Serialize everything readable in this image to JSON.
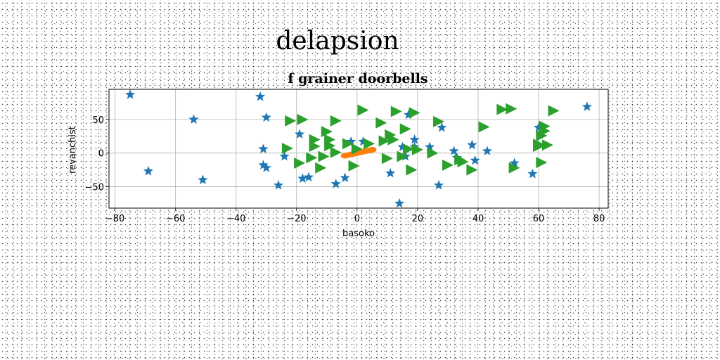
{
  "figure": {
    "suptitle": "delapsion"
  },
  "chart_data": {
    "type": "scatter",
    "title": "f grainer doorbells",
    "xlabel": "basoko",
    "ylabel": "revanchist",
    "xlim": [
      -82,
      83
    ],
    "ylim": [
      -82,
      95
    ],
    "xticks": [
      -80,
      -60,
      -40,
      -20,
      0,
      20,
      40,
      60,
      80
    ],
    "xtick_labels": [
      "−80",
      "−60",
      "−40",
      "−20",
      "0",
      "20",
      "40",
      "60",
      "80"
    ],
    "yticks": [
      -50,
      0,
      50
    ],
    "ytick_labels": [
      "−50",
      "0",
      "50"
    ],
    "grid": true,
    "legend": "none",
    "series": [
      {
        "marker": "star",
        "color": "#1f77b4",
        "points": [
          [
            -75,
            87
          ],
          [
            -69,
            -27
          ],
          [
            -54,
            50
          ],
          [
            -51,
            -40
          ],
          [
            -32,
            84
          ],
          [
            -31,
            -18
          ],
          [
            -31,
            6
          ],
          [
            -30,
            53
          ],
          [
            -30,
            -22
          ],
          [
            -26,
            -48
          ],
          [
            -24,
            -5
          ],
          [
            -19,
            28
          ],
          [
            -18,
            -38
          ],
          [
            -16,
            -36
          ],
          [
            -7,
            -46
          ],
          [
            -4,
            -37
          ],
          [
            -2,
            17
          ],
          [
            2,
            17
          ],
          [
            11,
            -30
          ],
          [
            14,
            -75
          ],
          [
            15,
            9
          ],
          [
            16,
            -5
          ],
          [
            17,
            57
          ],
          [
            19,
            20
          ],
          [
            19,
            9
          ],
          [
            24,
            9
          ],
          [
            27,
            -48
          ],
          [
            28,
            38
          ],
          [
            32,
            3
          ],
          [
            33,
            -7
          ],
          [
            38,
            12
          ],
          [
            39,
            -11
          ],
          [
            43,
            3
          ],
          [
            52,
            -15
          ],
          [
            58,
            -31
          ],
          [
            60,
            38
          ],
          [
            76,
            69
          ]
        ]
      },
      {
        "marker": "ellipse",
        "color": "#ff7f0e",
        "points": [
          [
            -4,
            -4
          ],
          [
            -3,
            -3
          ],
          [
            -2,
            -2
          ],
          [
            -1,
            -1
          ],
          [
            0,
            0
          ],
          [
            1,
            1
          ],
          [
            2,
            2
          ],
          [
            3,
            3
          ],
          [
            4,
            4
          ],
          [
            5,
            5
          ]
        ]
      },
      {
        "marker": "triangle-right",
        "color": "#2ca02c",
        "points": [
          [
            -23,
            7
          ],
          [
            -22,
            48
          ],
          [
            -19,
            -15
          ],
          [
            -18,
            50
          ],
          [
            -15,
            -7
          ],
          [
            -14,
            10
          ],
          [
            -14,
            20
          ],
          [
            -12,
            -22
          ],
          [
            -11,
            -5
          ],
          [
            -10,
            32
          ],
          [
            -9,
            11
          ],
          [
            -9,
            20
          ],
          [
            -7,
            48
          ],
          [
            -7,
            1
          ],
          [
            -3,
            14
          ],
          [
            -1,
            -19
          ],
          [
            0,
            6
          ],
          [
            2,
            64
          ],
          [
            4,
            14
          ],
          [
            8,
            45
          ],
          [
            9,
            18
          ],
          [
            10,
            -8
          ],
          [
            11,
            27
          ],
          [
            12,
            20
          ],
          [
            13,
            62
          ],
          [
            15,
            -5
          ],
          [
            16,
            36
          ],
          [
            17,
            6
          ],
          [
            18,
            -25
          ],
          [
            19,
            60
          ],
          [
            20,
            5
          ],
          [
            25,
            0
          ],
          [
            27,
            47
          ],
          [
            30,
            -18
          ],
          [
            34,
            -10
          ],
          [
            35,
            -13
          ],
          [
            38,
            -25
          ],
          [
            42,
            39
          ],
          [
            48,
            65
          ],
          [
            51,
            66
          ],
          [
            52,
            -22
          ],
          [
            60,
            10
          ],
          [
            60,
            13
          ],
          [
            61,
            26
          ],
          [
            61,
            -14
          ],
          [
            62,
            40
          ],
          [
            62,
            33
          ],
          [
            63,
            12
          ],
          [
            65,
            63
          ]
        ]
      }
    ]
  }
}
